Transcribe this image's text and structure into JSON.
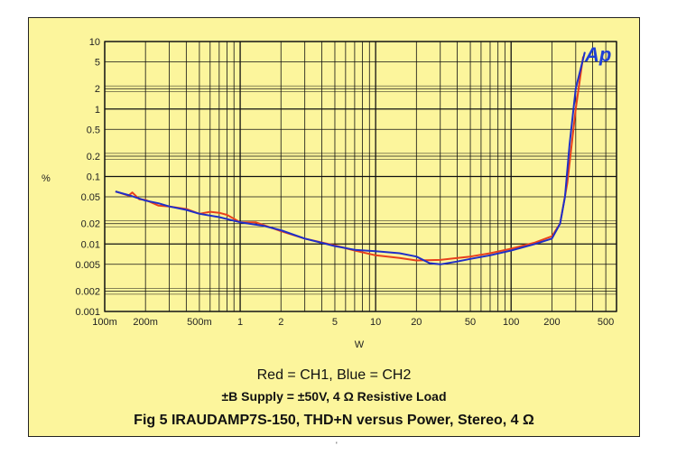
{
  "chart_data": {
    "type": "line",
    "xscale": "log",
    "yscale": "log",
    "xlim": [
      0.1,
      600
    ],
    "ylim": [
      0.001,
      10
    ],
    "xlabel": "W",
    "ylabel": "%",
    "grid": true,
    "x_ticks": [
      {
        "v": 0.1,
        "label": "100m"
      },
      {
        "v": 0.2,
        "label": "200m"
      },
      {
        "v": 0.5,
        "label": "500m"
      },
      {
        "v": 1,
        "label": "1"
      },
      {
        "v": 2,
        "label": "2"
      },
      {
        "v": 5,
        "label": "5"
      },
      {
        "v": 10,
        "label": "10"
      },
      {
        "v": 20,
        "label": "20"
      },
      {
        "v": 50,
        "label": "50"
      },
      {
        "v": 100,
        "label": "100"
      },
      {
        "v": 200,
        "label": "200"
      },
      {
        "v": 500,
        "label": "500"
      }
    ],
    "y_ticks": [
      {
        "v": 10,
        "label": "10"
      },
      {
        "v": 5,
        "label": "5"
      },
      {
        "v": 2,
        "label": "2"
      },
      {
        "v": 1,
        "label": "1"
      },
      {
        "v": 0.5,
        "label": "0.5"
      },
      {
        "v": 0.2,
        "label": "0.2"
      },
      {
        "v": 0.1,
        "label": "0.1"
      },
      {
        "v": 0.05,
        "label": "0.05"
      },
      {
        "v": 0.02,
        "label": "0.02"
      },
      {
        "v": 0.01,
        "label": "0.01"
      },
      {
        "v": 0.005,
        "label": "0.005"
      },
      {
        "v": 0.002,
        "label": "0.002"
      },
      {
        "v": 0.001,
        "label": "0.001"
      }
    ],
    "series": [
      {
        "name": "CH1",
        "color": "#e8401c",
        "x": [
          0.12,
          0.15,
          0.16,
          0.18,
          0.2,
          0.25,
          0.3,
          0.4,
          0.5,
          0.6,
          0.7,
          0.8,
          1,
          1.3,
          1.5,
          2,
          3,
          5,
          7,
          10,
          15,
          20,
          30,
          50,
          70,
          100,
          150,
          200,
          230,
          260,
          300,
          340
        ],
        "y": [
          0.06,
          0.052,
          0.058,
          0.046,
          0.045,
          0.037,
          0.036,
          0.033,
          0.028,
          0.03,
          0.029,
          0.027,
          0.021,
          0.021,
          0.019,
          0.0155,
          0.012,
          0.0095,
          0.008,
          0.0068,
          0.0062,
          0.0057,
          0.0058,
          0.0065,
          0.0073,
          0.0085,
          0.0105,
          0.013,
          0.02,
          0.08,
          1.0,
          6.0
        ]
      },
      {
        "name": "CH2",
        "color": "#1f2fc8",
        "x": [
          0.12,
          0.15,
          0.2,
          0.25,
          0.3,
          0.4,
          0.5,
          0.7,
          1,
          1.5,
          2,
          3,
          5,
          7,
          10,
          15,
          20,
          25,
          30,
          40,
          50,
          70,
          100,
          150,
          200,
          230,
          250,
          270,
          300,
          350
        ],
        "y": [
          0.06,
          0.053,
          0.044,
          0.04,
          0.036,
          0.032,
          0.028,
          0.025,
          0.021,
          0.0185,
          0.016,
          0.012,
          0.0093,
          0.0082,
          0.0078,
          0.0073,
          0.0065,
          0.0052,
          0.005,
          0.0055,
          0.006,
          0.0068,
          0.008,
          0.01,
          0.012,
          0.02,
          0.05,
          0.3,
          2.0,
          7.0
        ]
      }
    ],
    "legend_text": "Red = CH1,  Blue  = CH2",
    "subtitle": "±B Supply = ±50V,  4 Ω Resistive Load",
    "title": "Fig 5 IRAUDAMP7S-150, THD+N versus Power, Stereo, 4 Ω",
    "logo_text": "Ap"
  }
}
